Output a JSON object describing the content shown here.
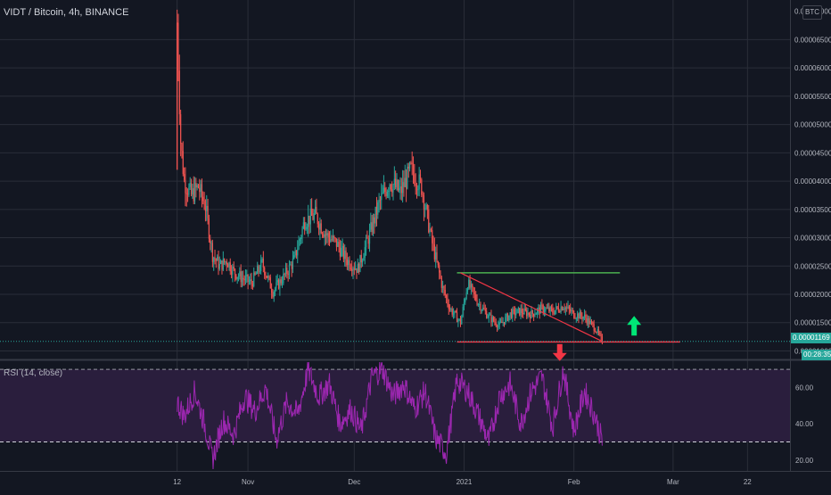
{
  "chart_data": [
    {
      "type": "line",
      "title": "VIDT / Bitcoin, 4h, BINANCE",
      "currency_badge": "BTC",
      "y_tick_labels": [
        "0.00006500",
        "0.00006000",
        "0.00005500",
        "0.00005000",
        "0.00004500",
        "0.00004000",
        "0.00003500",
        "0.00003000",
        "0.00002500",
        "0.00002000",
        "0.00001500",
        "0.00001000"
      ],
      "y_tick_values": [
        6.5e-05,
        6e-05,
        5.5e-05,
        5e-05,
        4.5e-05,
        4e-05,
        3.5e-05,
        3e-05,
        2.5e-05,
        2e-05,
        1.5e-05,
        1e-05
      ],
      "y_top_label": "0.00007000",
      "ylim": [
        8.5e-06,
        7.2e-05
      ],
      "x_tick_labels": [
        "12",
        "Nov",
        "Dec",
        "2021",
        "Feb",
        "Mar",
        "22"
      ],
      "x_tick_dates": [
        "2020-10-12",
        "2020-11-01",
        "2020-12-01",
        "2021-01-01",
        "2021-02-01",
        "2021-03-01",
        "2021-03-22"
      ],
      "xlim": [
        "2020-08-23",
        "2021-04-03"
      ],
      "last_price_label": "0.00001169",
      "countdown_label": "00:28:35",
      "series": [
        {
          "x": [
            "2020-10-12",
            "2020-10-13",
            "2020-10-14",
            "2020-10-16",
            "2020-10-18",
            "2020-10-20",
            "2020-10-22",
            "2020-10-24",
            "2020-10-26",
            "2020-10-28",
            "2020-10-30",
            "2020-11-02",
            "2020-11-05",
            "2020-11-08",
            "2020-11-11",
            "2020-11-14",
            "2020-11-17",
            "2020-11-20",
            "2020-11-23",
            "2020-11-26",
            "2020-11-29",
            "2020-12-02",
            "2020-12-05",
            "2020-12-08",
            "2020-12-11",
            "2020-12-14",
            "2020-12-17",
            "2020-12-20",
            "2020-12-23",
            "2020-12-26",
            "2020-12-28",
            "2020-12-31",
            "2021-01-02",
            "2021-01-05",
            "2021-01-08",
            "2021-01-11",
            "2021-01-14",
            "2021-01-17",
            "2021-01-20",
            "2021-01-23",
            "2021-01-26",
            "2021-01-29",
            "2021-02-01",
            "2021-02-04",
            "2021-02-07",
            "2021-02-09"
          ],
          "y": [
            6.8e-05,
            4.7e-05,
            4e-05,
            3.75e-05,
            3.9e-05,
            3.55e-05,
            2.7e-05,
            2.5e-05,
            2.6e-05,
            2.4e-05,
            2.3e-05,
            2.2e-05,
            2.55e-05,
            2.05e-05,
            2.3e-05,
            2.6e-05,
            3.3e-05,
            3.4e-05,
            3.05e-05,
            2.9e-05,
            2.6e-05,
            2.45e-05,
            3e-05,
            3.6e-05,
            4e-05,
            3.8e-05,
            4.2e-05,
            3.9e-05,
            2.9e-05,
            2.1e-05,
            1.75e-05,
            1.5e-05,
            2.2e-05,
            1.85e-05,
            1.6e-05,
            1.45e-05,
            1.65e-05,
            1.7e-05,
            1.65e-05,
            1.75e-05,
            1.7e-05,
            1.8e-05,
            1.65e-05,
            1.6e-05,
            1.4e-05,
            1.17e-05
          ]
        }
      ],
      "annotations": {
        "resistance_line": {
          "y": 2.38e-05,
          "x_start": "2020-12-30",
          "x_end": "2021-02-14",
          "color": "#4caf50"
        },
        "support_line": {
          "y": 1.16e-05,
          "x_start": "2020-12-30",
          "x_end": "2021-03-03",
          "color": "#f23645"
        },
        "descending_trendline": {
          "x_start": "2020-12-31",
          "y_start": 2.38e-05,
          "x_end": "2021-02-09",
          "y_end": 1.17e-05,
          "color": "#f23645"
        },
        "up_arrow": {
          "x": "2021-02-18",
          "y": 1.43e-05,
          "color": "#00e676"
        },
        "down_arrow": {
          "x": "2021-01-28",
          "y": 9.8e-06,
          "color": "#f23645"
        }
      }
    },
    {
      "type": "line",
      "title": "RSI (14, close)",
      "y_tick_labels": [
        "60.00",
        "40.00",
        "20.00"
      ],
      "y_tick_values": [
        60,
        40,
        20
      ],
      "ylim": [
        14,
        75
      ],
      "overbought": 70,
      "oversold": 30,
      "series": [
        {
          "x": [
            "2020-10-12",
            "2020-10-14",
            "2020-10-17",
            "2020-10-20",
            "2020-10-22",
            "2020-10-25",
            "2020-10-28",
            "2020-10-31",
            "2020-11-03",
            "2020-11-06",
            "2020-11-09",
            "2020-11-12",
            "2020-11-15",
            "2020-11-18",
            "2020-11-21",
            "2020-11-24",
            "2020-11-27",
            "2020-11-30",
            "2020-12-03",
            "2020-12-06",
            "2020-12-09",
            "2020-12-12",
            "2020-12-15",
            "2020-12-18",
            "2020-12-21",
            "2020-12-24",
            "2020-12-27",
            "2020-12-30",
            "2021-01-02",
            "2021-01-05",
            "2021-01-08",
            "2021-01-11",
            "2021-01-14",
            "2021-01-17",
            "2021-01-20",
            "2021-01-23",
            "2021-01-26",
            "2021-01-29",
            "2021-02-01",
            "2021-02-04",
            "2021-02-07",
            "2021-02-09"
          ],
          "y": [
            52,
            44,
            58,
            38,
            20,
            42,
            34,
            55,
            47,
            60,
            31,
            52,
            45,
            70,
            55,
            62,
            40,
            48,
            36,
            66,
            70,
            55,
            62,
            48,
            58,
            32,
            24,
            64,
            58,
            45,
            30,
            55,
            62,
            40,
            58,
            66,
            38,
            70,
            36,
            58,
            44,
            30
          ]
        }
      ]
    }
  ],
  "colors": {
    "background": "#131722",
    "grid": "#2a2e39",
    "up_candle": "#26a69a",
    "down_candle": "#ef5350",
    "rsi_line": "#9c27b0",
    "rsi_band": "#2a1e3d",
    "axis_text": "#b2b5be",
    "last_price_tag": "#26a69a"
  }
}
